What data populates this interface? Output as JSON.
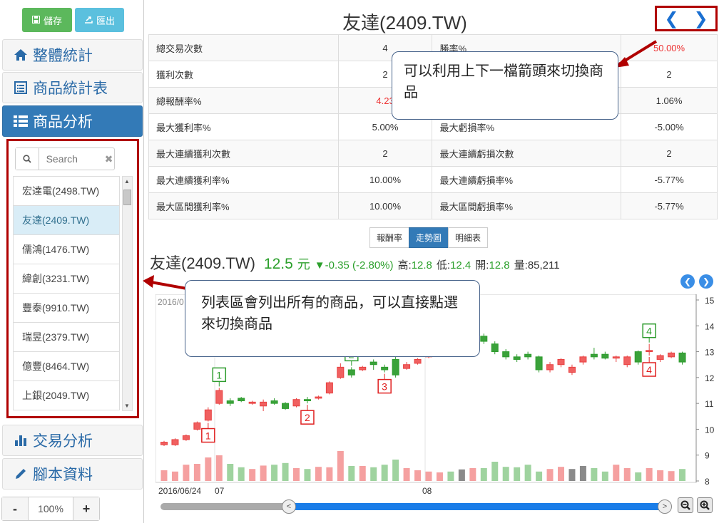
{
  "toolbar": {
    "save_label": "儲存",
    "export_label": "匯出"
  },
  "menu": {
    "overall": "整體統計",
    "product_table": "商品統計表",
    "product_analysis": "商品分析",
    "trade_analysis": "交易分析",
    "script_data": "腳本資料"
  },
  "search": {
    "placeholder": "Search"
  },
  "products": [
    "宏達電(2498.TW)",
    "友達(2409.TW)",
    "儒鴻(1476.TW)",
    "緯創(3231.TW)",
    "豐泰(9910.TW)",
    "瑞昱(2379.TW)",
    "億豐(8464.TW)",
    "上銀(2049.TW)"
  ],
  "zoom": {
    "minus": "-",
    "value": "100%",
    "plus": "+"
  },
  "main": {
    "title": "友達(2409.TW)",
    "stats": [
      [
        "總交易次數",
        "4",
        "勝率%",
        "50.00%"
      ],
      [
        "獲利次數",
        "2",
        "",
        "2"
      ],
      [
        "總報酬率%",
        "4.23",
        "",
        "1.06%"
      ],
      [
        "最大獲利率%",
        "5.00%",
        "最大虧損率%",
        "-5.00%"
      ],
      [
        "最大連續獲利次數",
        "2",
        "最大連續虧損次數",
        "2"
      ],
      [
        "最大連續獲利率%",
        "10.00%",
        "最大連續虧損率%",
        "-5.77%"
      ],
      [
        "最大區間獲利率%",
        "10.00%",
        "最大區間虧損率%",
        "-5.77%"
      ]
    ],
    "tabs": [
      "報酬率",
      "走勢圖",
      "明細表"
    ],
    "quote": {
      "name": "友達(2409.TW)",
      "price": "12.5",
      "unit": "元",
      "change": "▼-0.35 (-2.80%)",
      "high_label": "高:",
      "high": "12.8",
      "low_label": "低:",
      "low": "12.4",
      "open_label": "開:",
      "open": "12.8",
      "vol_label": "量:",
      "vol": "85,211"
    }
  },
  "callouts": {
    "nav": "可以利用上下一檔箭頭來切換商品",
    "list": "列表區會列出所有的商品，可以直接點選來切換商品"
  },
  "colors": {
    "up": "#f06060",
    "down": "#3aa23a",
    "accent": "#337ab7",
    "highlight": "#b00000"
  },
  "chart_data": {
    "type": "candlestick",
    "date_label": "2016/0",
    "x_ticks": [
      "2016/06/24",
      "07",
      "08"
    ],
    "y_ticks": [
      "8",
      "9",
      "10",
      "11",
      "12",
      "13",
      "14",
      "15"
    ],
    "ylim": [
      8,
      15
    ],
    "candles": [
      [
        9.4,
        9.5,
        9.35,
        9.55
      ],
      [
        9.4,
        9.6,
        9.35,
        9.65
      ],
      [
        9.6,
        9.75,
        9.55,
        9.8
      ],
      [
        10.0,
        10.25,
        9.95,
        10.3
      ],
      [
        10.35,
        10.75,
        10.3,
        10.85
      ],
      [
        11.0,
        11.5,
        10.95,
        11.6
      ],
      [
        11.1,
        11.0,
        10.9,
        11.2
      ],
      [
        11.2,
        11.1,
        11.05,
        11.25
      ],
      [
        11.0,
        11.05,
        10.95,
        11.1
      ],
      [
        10.9,
        11.05,
        10.7,
        11.15
      ],
      [
        11.1,
        11.0,
        10.95,
        11.2
      ],
      [
        11.0,
        10.8,
        10.75,
        11.05
      ],
      [
        10.9,
        11.15,
        10.85,
        11.2
      ],
      [
        11.15,
        11.1,
        11.0,
        11.25
      ],
      [
        11.2,
        11.25,
        11.15,
        11.3
      ],
      [
        11.4,
        11.8,
        11.35,
        11.85
      ],
      [
        12.0,
        12.4,
        11.95,
        12.55
      ],
      [
        12.3,
        12.1,
        12.0,
        12.4
      ],
      [
        12.3,
        12.4,
        12.25,
        12.45
      ],
      [
        12.6,
        12.5,
        12.3,
        12.7
      ],
      [
        12.4,
        12.3,
        12.2,
        12.5
      ],
      [
        12.7,
        12.1,
        12.0,
        12.8
      ],
      [
        12.35,
        12.5,
        12.3,
        12.6
      ],
      [
        12.55,
        12.7,
        12.5,
        12.75
      ],
      [
        12.8,
        12.85,
        12.75,
        12.9
      ],
      [
        13.1,
        13.2,
        13.0,
        13.3
      ],
      [
        13.3,
        13.1,
        13.0,
        13.4
      ],
      [
        13.1,
        12.9,
        12.8,
        13.2
      ],
      [
        13.0,
        13.3,
        12.95,
        13.35
      ],
      [
        13.6,
        13.4,
        13.3,
        13.7
      ],
      [
        13.3,
        13.0,
        12.9,
        13.4
      ],
      [
        13.0,
        12.8,
        12.7,
        13.1
      ],
      [
        12.8,
        12.7,
        12.6,
        12.9
      ],
      [
        12.9,
        12.8,
        12.7,
        13.0
      ],
      [
        12.8,
        12.3,
        12.2,
        12.85
      ],
      [
        12.3,
        12.5,
        12.2,
        12.6
      ],
      [
        12.5,
        12.7,
        12.4,
        12.75
      ],
      [
        12.2,
        12.4,
        12.1,
        12.5
      ],
      [
        12.6,
        12.8,
        12.5,
        12.85
      ],
      [
        12.9,
        12.8,
        12.7,
        13.15
      ],
      [
        12.9,
        12.75,
        12.7,
        13.0
      ],
      [
        12.75,
        12.8,
        12.6,
        12.85
      ],
      [
        12.5,
        12.8,
        12.4,
        12.85
      ],
      [
        13.0,
        12.6,
        12.5,
        13.05
      ],
      [
        13.0,
        13.05,
        12.85,
        13.3
      ],
      [
        12.7,
        12.85,
        12.6,
        12.9
      ],
      [
        12.8,
        12.95,
        12.75,
        13.0
      ],
      [
        12.95,
        12.6,
        12.5,
        13.0
      ]
    ],
    "volumes": [
      0.25,
      0.22,
      0.38,
      0.4,
      0.55,
      0.6,
      0.4,
      0.32,
      0.28,
      0.36,
      0.38,
      0.42,
      0.3,
      0.28,
      0.33,
      0.32,
      0.7,
      0.35,
      0.35,
      0.32,
      0.38,
      0.5,
      0.3,
      0.25,
      0.22,
      0.2,
      0.22,
      0.27,
      0.3,
      0.3,
      0.45,
      0.33,
      0.32,
      0.38,
      0.22,
      0.28,
      0.33,
      0.28,
      0.35,
      0.3,
      0.22,
      0.38,
      0.3,
      0.2,
      0.3,
      0.25,
      0.23,
      0.28
    ],
    "signals": [
      {
        "index": 5,
        "label": "1",
        "type": "buy"
      },
      {
        "index": 4,
        "label": "1",
        "type": "sell"
      },
      {
        "index": 13,
        "label": "2",
        "type": "sell"
      },
      {
        "index": 17,
        "label": "2",
        "type": "buy"
      },
      {
        "index": 20,
        "label": "3",
        "type": "sell"
      },
      {
        "index": 44,
        "label": "4",
        "type": "buy"
      },
      {
        "index": 44,
        "label": "4",
        "type": "sell"
      }
    ]
  }
}
